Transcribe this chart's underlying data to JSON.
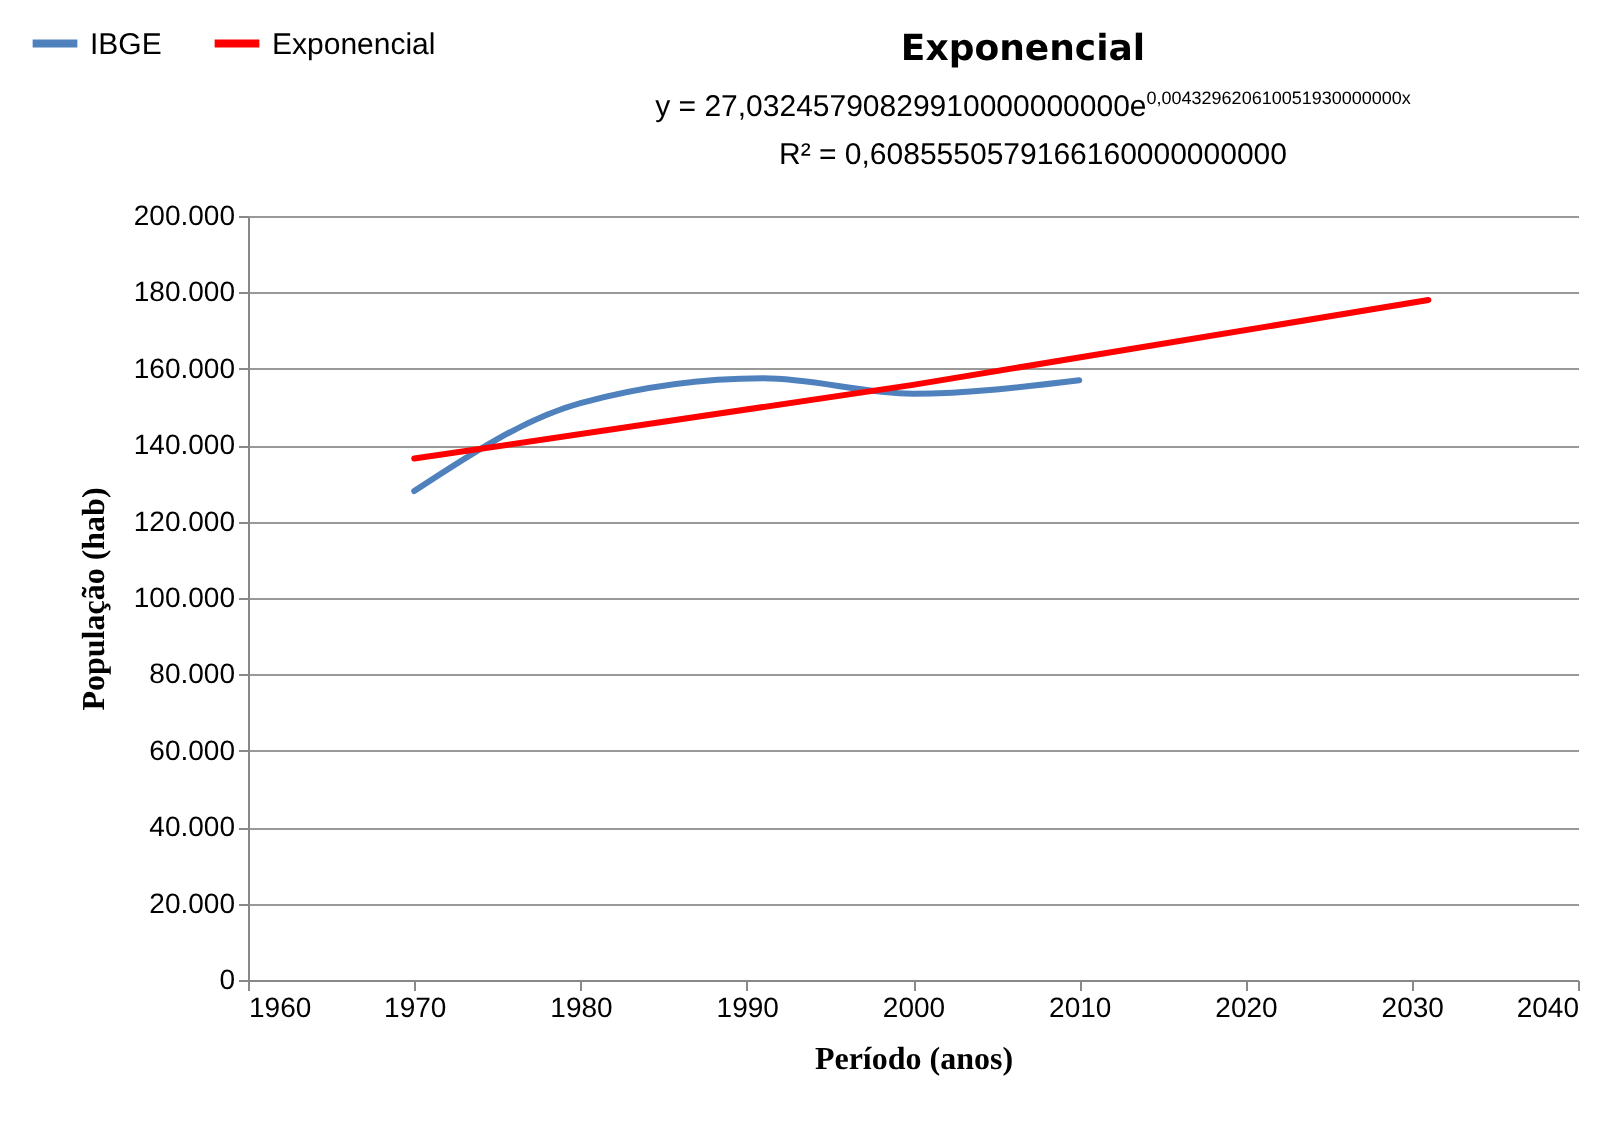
{
  "chart_data": {
    "type": "line",
    "title": "Exponencial",
    "xlabel": "Período (anos)",
    "ylabel": "População (hab)",
    "annotations": [
      "y = 27,03245790829910000000000e$^{0,004329620610051930000000x}$",
      "R² = 0,6085550579166160000000000"
    ],
    "series": [
      {
        "name": "IBGE",
        "color": "#4f81bd",
        "x": [
          1970,
          1980,
          1991,
          2000,
          2010
        ],
        "values": [
          128000,
          151000,
          157500,
          153500,
          157000
        ]
      },
      {
        "name": "Exponencial",
        "color": "#ff0000",
        "x": [
          1970,
          2000,
          2031
        ],
        "values": [
          136500,
          155800,
          178000
        ]
      }
    ],
    "xlim": [
      1960,
      2040
    ],
    "xticks": [
      1960,
      1970,
      1980,
      1990,
      2000,
      2010,
      2020,
      2030,
      2040
    ],
    "ylim": [
      0,
      200000
    ],
    "yticks": [
      0,
      {
        "value": 20000,
        "label": "20.000"
      },
      {
        "value": 40000,
        "label": "40.000"
      },
      {
        "value": 60000,
        "label": "60.000"
      },
      {
        "value": 80000,
        "label": "80.000"
      },
      {
        "value": 100000,
        "label": "100.000"
      },
      {
        "value": 120000,
        "label": "120.000"
      },
      {
        "value": 140000,
        "label": "140.000"
      },
      {
        "value": 160000,
        "label": "160.000"
      },
      {
        "value": 180000,
        "label": "180.000"
      },
      {
        "value": 200000,
        "label": "200.000"
      }
    ],
    "grid": "y",
    "legend": "top left",
    "marker": "none",
    "line_style": "solid"
  }
}
